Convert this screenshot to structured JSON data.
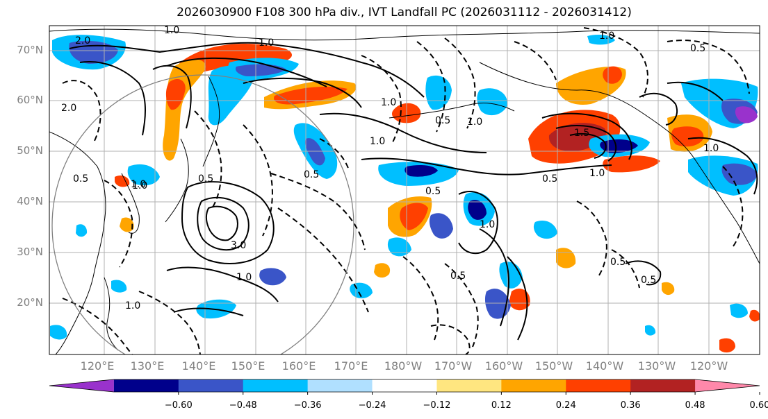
{
  "title": "2026030900 F108 300 hPa div., IVT Landfall PC (2026031112 - 2026031412)",
  "lat_labels": [
    "70°N",
    "60°N",
    "50°N",
    "40°N",
    "30°N",
    "20°N"
  ],
  "lon_labels": [
    "120°E",
    "130°E",
    "140°E",
    "150°E",
    "160°E",
    "170°E",
    "180°W",
    "170°W",
    "160°W",
    "150°W",
    "140°W",
    "130°W",
    "120°W"
  ],
  "colorbar": {
    "colors": [
      "#9932cc",
      "#00008b",
      "#3a55c8",
      "#00bfff",
      "#b0e0ff",
      "#ffffff",
      "#ffe680",
      "#ffa500",
      "#ff4000",
      "#b22222",
      "#ff88aa"
    ],
    "ticks": [
      "−0.60",
      "−0.48",
      "−0.36",
      "−0.24",
      "−0.12",
      "0.12",
      "0.24",
      "0.36",
      "0.48",
      "0.60"
    ]
  },
  "contour_labels": [
    "2.0",
    "1.0",
    "1.0",
    "0.5",
    "0.5",
    "2.0",
    "3.0",
    "1.0",
    "1.0",
    "1.0",
    "0.5",
    "0.5",
    "1.0",
    "1.0",
    "1.0",
    "0.5",
    "1.0",
    "1.5",
    "0.5",
    "0.5",
    "1.0",
    "0.5",
    "1.0",
    "0.5",
    "1.0",
    "0.5",
    "1.0"
  ]
}
